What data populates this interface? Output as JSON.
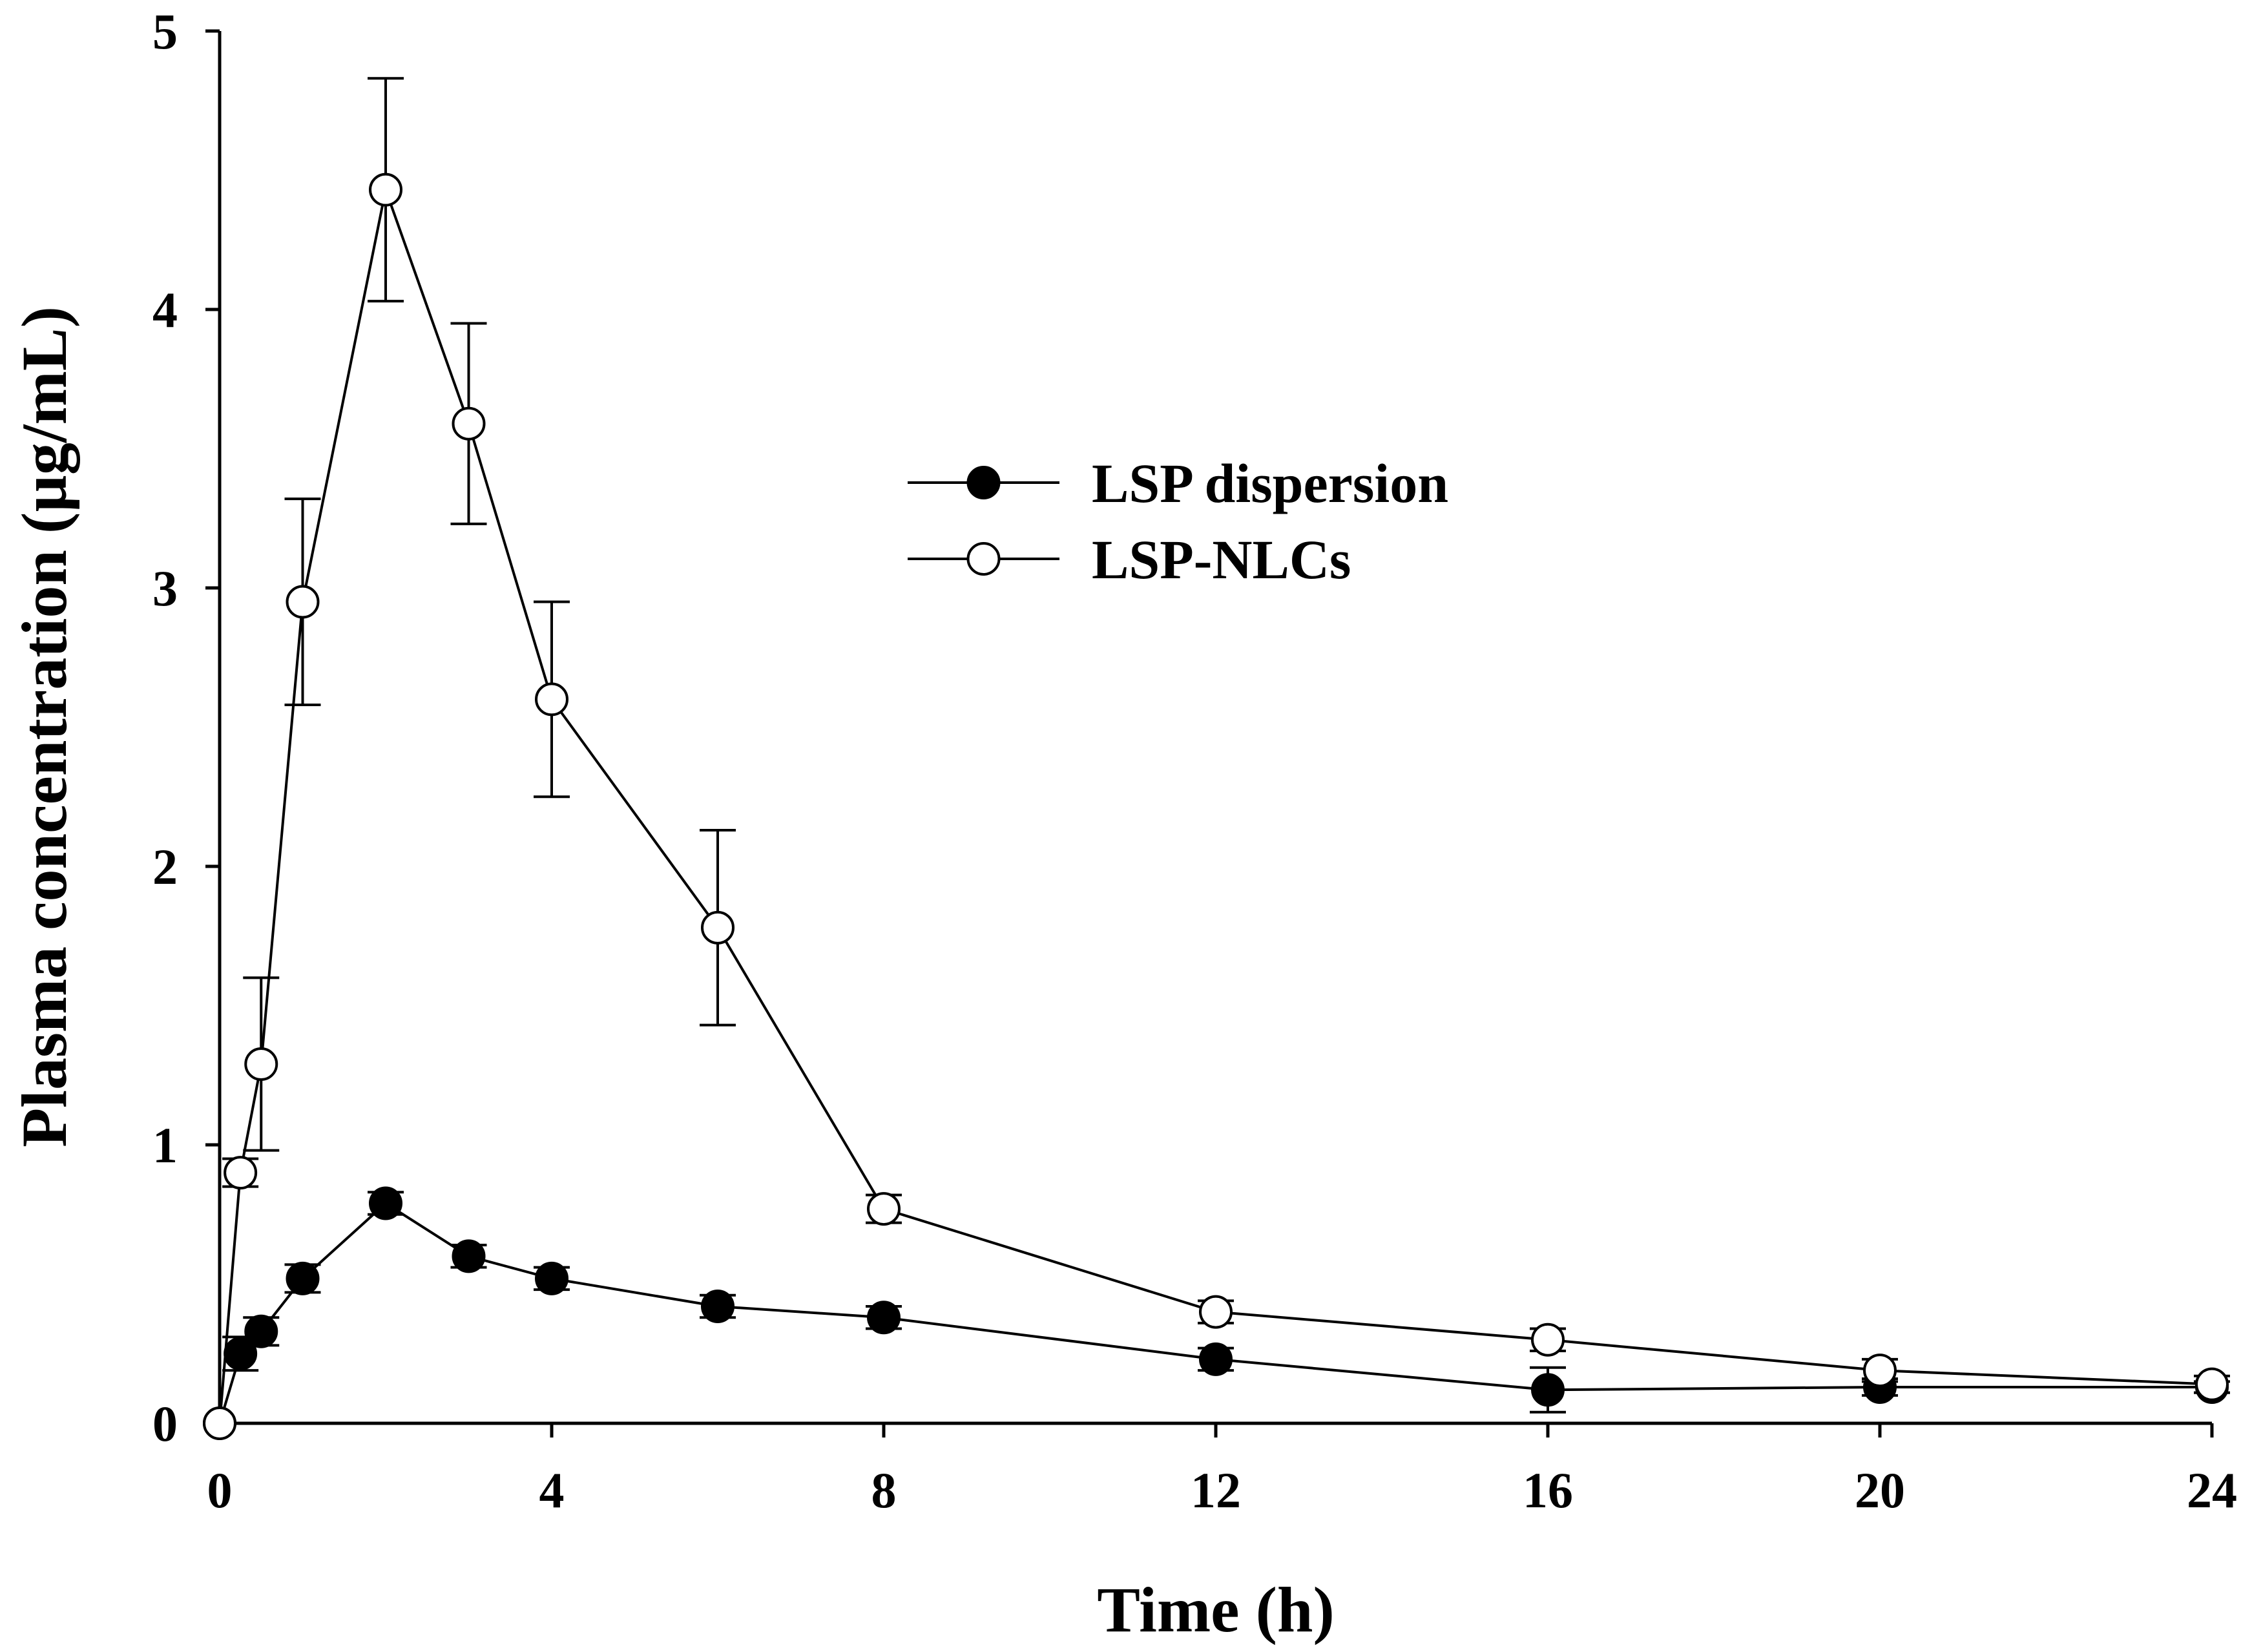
{
  "chart_data": {
    "type": "line",
    "title": "",
    "xlabel": "Time (h)",
    "ylabel": "Plasma concentration (µg/mL)",
    "xlim": [
      0,
      24
    ],
    "ylim": [
      0,
      5
    ],
    "xticks": [
      0,
      4,
      8,
      12,
      16,
      20,
      24
    ],
    "yticks": [
      0,
      1,
      2,
      3,
      4,
      5
    ],
    "grid": false,
    "legend_position": "upper-middle",
    "series": [
      {
        "name": "LSP dispersion",
        "marker": "filled-circle",
        "color": "#000000",
        "x": [
          0,
          0.25,
          0.5,
          1,
          2,
          3,
          4,
          6,
          8,
          12,
          16,
          20,
          24
        ],
        "y": [
          0,
          0.25,
          0.33,
          0.52,
          0.79,
          0.6,
          0.52,
          0.42,
          0.38,
          0.23,
          0.12,
          0.13,
          0.13
        ],
        "error": [
          0,
          0.06,
          0.05,
          0.05,
          0.04,
          0.04,
          0.04,
          0.04,
          0.04,
          0.04,
          0.08,
          0.03,
          0.02
        ]
      },
      {
        "name": "LSP-NLCs",
        "marker": "open-circle",
        "color": "#000000",
        "x": [
          0,
          0.25,
          0.5,
          1,
          2,
          3,
          4,
          6,
          8,
          12,
          16,
          20,
          24
        ],
        "y": [
          0,
          0.9,
          1.29,
          2.95,
          4.43,
          3.59,
          2.6,
          1.78,
          0.77,
          0.4,
          0.3,
          0.19,
          0.14
        ],
        "error": [
          0,
          0.05,
          0.31,
          0.37,
          0.4,
          0.36,
          0.35,
          0.35,
          0.05,
          0.04,
          0.04,
          0.04,
          0.03
        ]
      }
    ]
  }
}
